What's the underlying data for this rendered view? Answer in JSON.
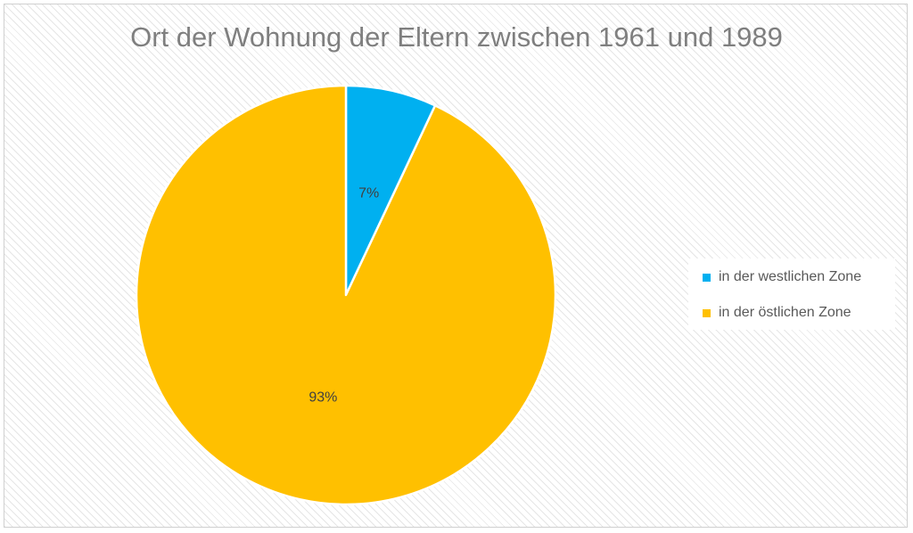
{
  "chart_data": {
    "type": "pie",
    "title": "Ort der Wohnung der Eltern zwischen 1961 und 1989",
    "categories": [
      "in der westlichen Zone",
      "in der östlichen Zone"
    ],
    "values": [
      7,
      93
    ],
    "data_labels": [
      "7%",
      "93%"
    ],
    "colors": [
      "#00B0F0",
      "#FFC000"
    ],
    "legend_position": "right"
  }
}
